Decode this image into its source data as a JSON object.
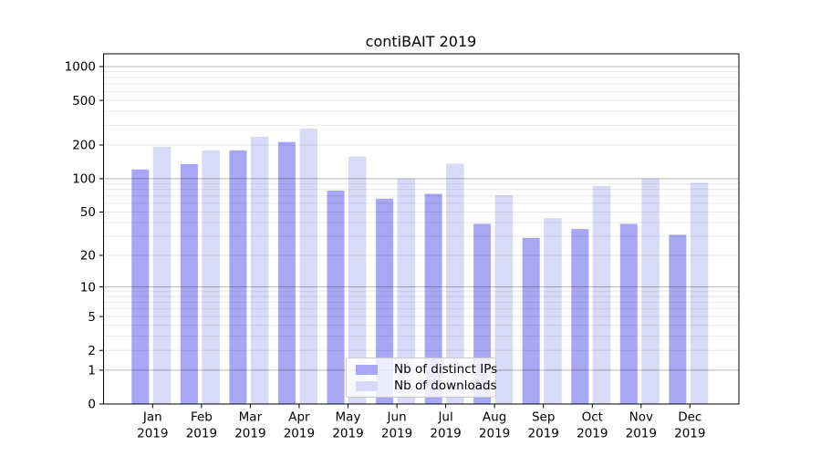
{
  "title": "contiBAIT 2019",
  "chart_data": {
    "type": "bar",
    "title": "contiBAIT 2019",
    "categories": [
      "Jan",
      "Feb",
      "Mar",
      "Apr",
      "May",
      "Jun",
      "Jul",
      "Aug",
      "Sep",
      "Oct",
      "Nov",
      "Dec"
    ],
    "x_year_label": "2019",
    "series": [
      {
        "name": "Nb of distinct IPs",
        "color": "#a7a7f3",
        "values": [
          121,
          135,
          179,
          213,
          78,
          66,
          73,
          39,
          29,
          35,
          39,
          31
        ]
      },
      {
        "name": "Nb of downloads",
        "color": "#d9d9f8",
        "values": [
          193,
          179,
          237,
          280,
          158,
          100,
          136,
          71,
          44,
          86,
          100,
          92
        ]
      }
    ],
    "yscale": "log1p",
    "ylim": [
      0,
      1300
    ],
    "y_tick_values": [
      1000,
      500,
      200,
      100,
      50,
      20,
      10,
      5,
      2,
      1,
      0
    ],
    "y_tick_labels": [
      "1000",
      "500",
      "200",
      "100",
      "50",
      "20",
      "10",
      "5",
      "2",
      "1",
      "0"
    ],
    "y_major_gridlines": [
      1,
      10,
      100,
      1000
    ],
    "grid": true,
    "legend_position": "inside-bottom-center",
    "xlabel": "",
    "ylabel": ""
  },
  "legend": {
    "items": [
      {
        "label": "Nb of distinct IPs",
        "color": "#a7a7f3"
      },
      {
        "label": "Nb of downloads",
        "color": "#d9d9f8"
      }
    ]
  },
  "colors": {
    "background": "#ffffff",
    "bar_distinct_ips": "#a7a7f3",
    "bar_downloads": "#d9d9f8",
    "spine": "#000000",
    "grid_major": "rgba(0,0,0,0.28)",
    "grid_minor": "rgba(0,0,0,0.09)",
    "tick_text": "#000000"
  }
}
